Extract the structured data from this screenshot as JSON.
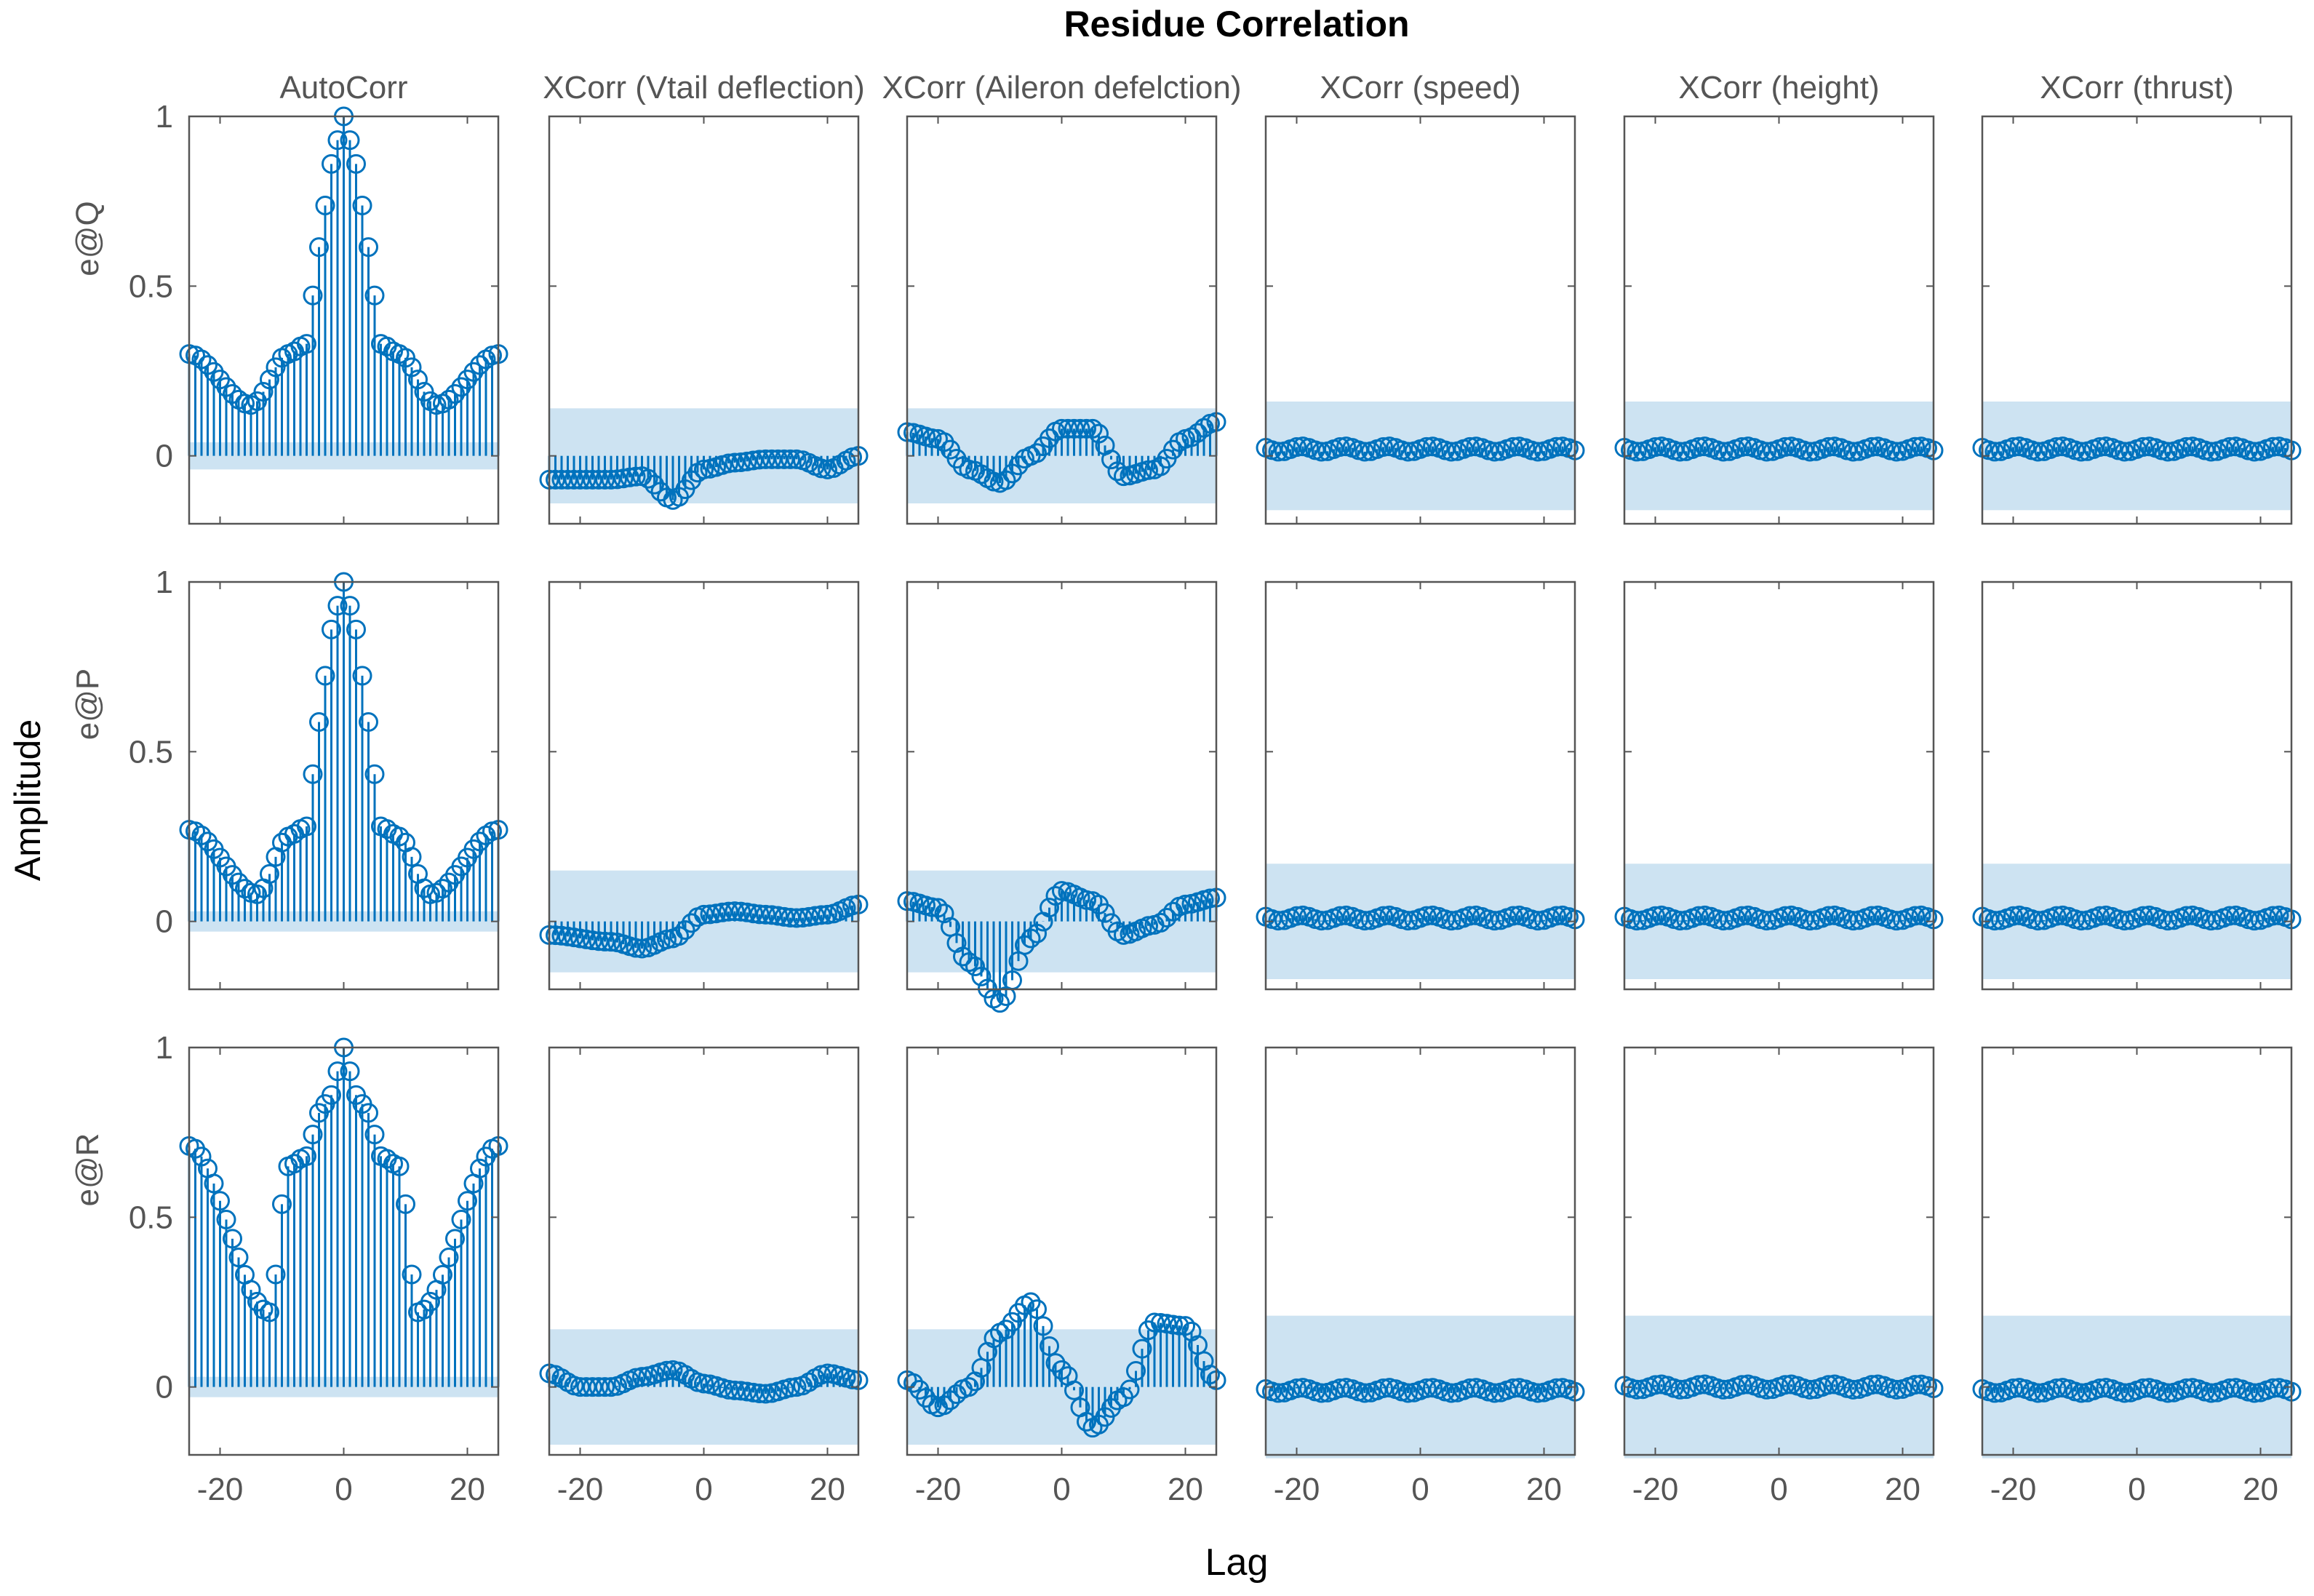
{
  "chart_data": {
    "type": "stem-grid",
    "title": "Residue Correlation",
    "xlabel": "Lag",
    "ylabel": "Amplitude",
    "columns": [
      "AutoCorr",
      "XCorr (Vtail deflection)",
      "XCorr (Aileron defelction)",
      "XCorr (speed)",
      "XCorr (height)",
      "XCorr (thrust)"
    ],
    "rows": [
      "e@Q",
      "e@P",
      "e@R"
    ],
    "xlim": [
      -25,
      25
    ],
    "ylim": [
      -0.2,
      1.0
    ],
    "xticks": [
      -20,
      0,
      20
    ],
    "yticks": [
      0,
      0.5,
      1
    ],
    "lags_range": [
      -25,
      25
    ],
    "panels": [
      [
        {
          "kind": "auto",
          "side": 0.3,
          "min": 0.15,
          "minLag": 15,
          "shoulder": 0.3,
          "peak": 1.0,
          "band": 0.04
        },
        {
          "kind": "xcorr",
          "base": -0.03,
          "knots": [
            [
              -25,
              -0.07
            ],
            [
              -15,
              -0.07
            ],
            [
              -10,
              -0.06
            ],
            [
              -5,
              -0.13
            ],
            [
              0,
              -0.04
            ],
            [
              5,
              -0.02
            ],
            [
              10,
              -0.01
            ],
            [
              15,
              -0.01
            ],
            [
              20,
              -0.04
            ],
            [
              25,
              0.0
            ]
          ],
          "band": 0.14
        },
        {
          "kind": "xcorr",
          "base": -0.03,
          "knots": [
            [
              -25,
              0.07
            ],
            [
              -20,
              0.05
            ],
            [
              -15,
              -0.04
            ],
            [
              -10,
              -0.08
            ],
            [
              -5,
              0.0
            ],
            [
              0,
              0.08
            ],
            [
              5,
              0.08
            ],
            [
              10,
              -0.06
            ],
            [
              15,
              -0.04
            ],
            [
              20,
              0.05
            ],
            [
              25,
              0.1
            ]
          ],
          "band": 0.14
        },
        {
          "kind": "flat",
          "level": 0.02,
          "band": 0.16
        },
        {
          "kind": "flat",
          "level": 0.02,
          "band": 0.16
        },
        {
          "kind": "flat",
          "level": 0.02,
          "band": 0.16
        }
      ],
      [
        {
          "kind": "auto",
          "side": 0.27,
          "min": 0.08,
          "minLag": 14,
          "shoulder": 0.25,
          "peak": 1.0,
          "band": 0.03
        },
        {
          "kind": "xcorr",
          "base": -0.03,
          "knots": [
            [
              -25,
              -0.04
            ],
            [
              -15,
              -0.06
            ],
            [
              -10,
              -0.08
            ],
            [
              -5,
              -0.05
            ],
            [
              0,
              0.02
            ],
            [
              5,
              0.03
            ],
            [
              10,
              0.02
            ],
            [
              15,
              0.01
            ],
            [
              20,
              0.02
            ],
            [
              25,
              0.05
            ]
          ],
          "band": 0.15
        },
        {
          "kind": "xcorr",
          "base": -0.03,
          "knots": [
            [
              -25,
              0.06
            ],
            [
              -20,
              0.04
            ],
            [
              -15,
              -0.12
            ],
            [
              -10,
              -0.24
            ],
            [
              -5,
              -0.05
            ],
            [
              0,
              0.09
            ],
            [
              5,
              0.06
            ],
            [
              10,
              -0.04
            ],
            [
              15,
              -0.01
            ],
            [
              20,
              0.05
            ],
            [
              25,
              0.07
            ]
          ],
          "band": 0.15
        },
        {
          "kind": "flat",
          "level": 0.01,
          "band": 0.17
        },
        {
          "kind": "flat",
          "level": 0.01,
          "band": 0.17
        },
        {
          "kind": "flat",
          "level": 0.01,
          "band": 0.17
        }
      ],
      [
        {
          "kind": "auto",
          "side": 0.71,
          "min": 0.22,
          "minLag": 12,
          "shoulder": 0.65,
          "peak": 1.0,
          "band": 0.03
        },
        {
          "kind": "xcorr",
          "base": -0.03,
          "knots": [
            [
              -25,
              0.04
            ],
            [
              -20,
              0.0
            ],
            [
              -15,
              0.0
            ],
            [
              -10,
              0.03
            ],
            [
              -5,
              0.05
            ],
            [
              0,
              0.01
            ],
            [
              5,
              -0.01
            ],
            [
              10,
              -0.02
            ],
            [
              15,
              0.0
            ],
            [
              20,
              0.04
            ],
            [
              25,
              0.02
            ]
          ],
          "band": 0.17
        },
        {
          "kind": "xcorr",
          "base": -0.03,
          "knots": [
            [
              -25,
              0.02
            ],
            [
              -20,
              -0.06
            ],
            [
              -15,
              0.0
            ],
            [
              -10,
              0.16
            ],
            [
              -5,
              0.25
            ],
            [
              0,
              0.05
            ],
            [
              5,
              -0.12
            ],
            [
              10,
              -0.03
            ],
            [
              15,
              0.19
            ],
            [
              20,
              0.18
            ],
            [
              25,
              0.02
            ]
          ],
          "band": 0.17
        },
        {
          "kind": "flat",
          "level": -0.01,
          "band": 0.21
        },
        {
          "kind": "flat",
          "level": 0.0,
          "band": 0.21
        },
        {
          "kind": "flat",
          "level": -0.01,
          "band": 0.21
        }
      ]
    ]
  }
}
